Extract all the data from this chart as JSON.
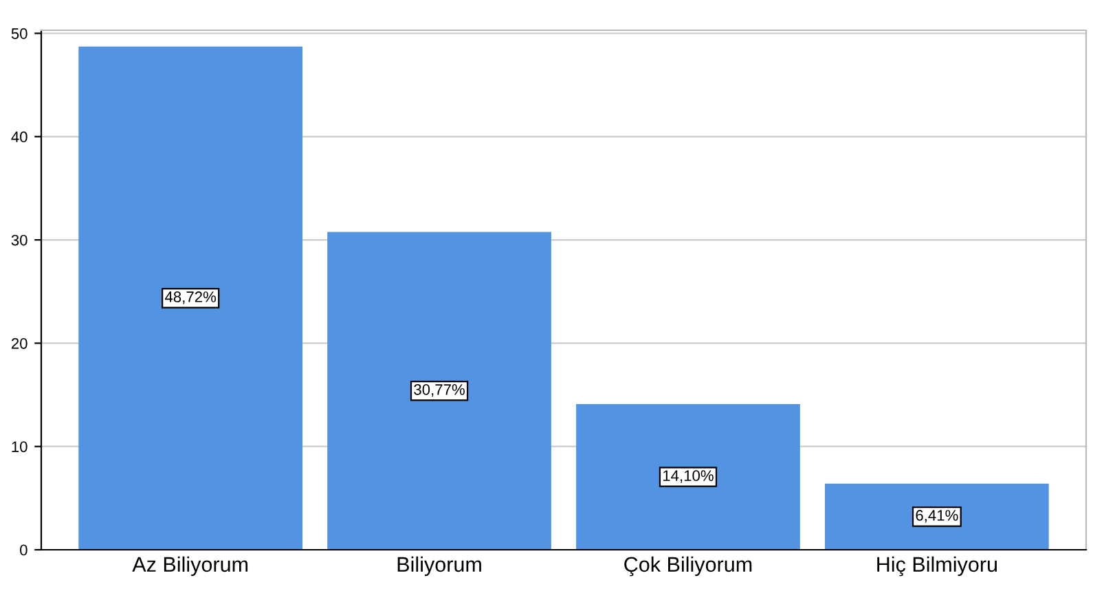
{
  "chart_data": {
    "type": "bar",
    "categories": [
      "Az Biliyorum",
      "Biliyorum",
      "Çok Biliyorum",
      "Hiç Bilmiyoru"
    ],
    "values": [
      48.72,
      30.77,
      14.1,
      6.41
    ],
    "value_labels": [
      "48,72%",
      "30,77%",
      "14,10%",
      "6,41%"
    ],
    "color": "#5294e2",
    "ylim": [
      0,
      50.3
    ],
    "yticks": [
      0,
      10,
      20,
      30,
      40,
      50
    ],
    "grid": "y"
  }
}
